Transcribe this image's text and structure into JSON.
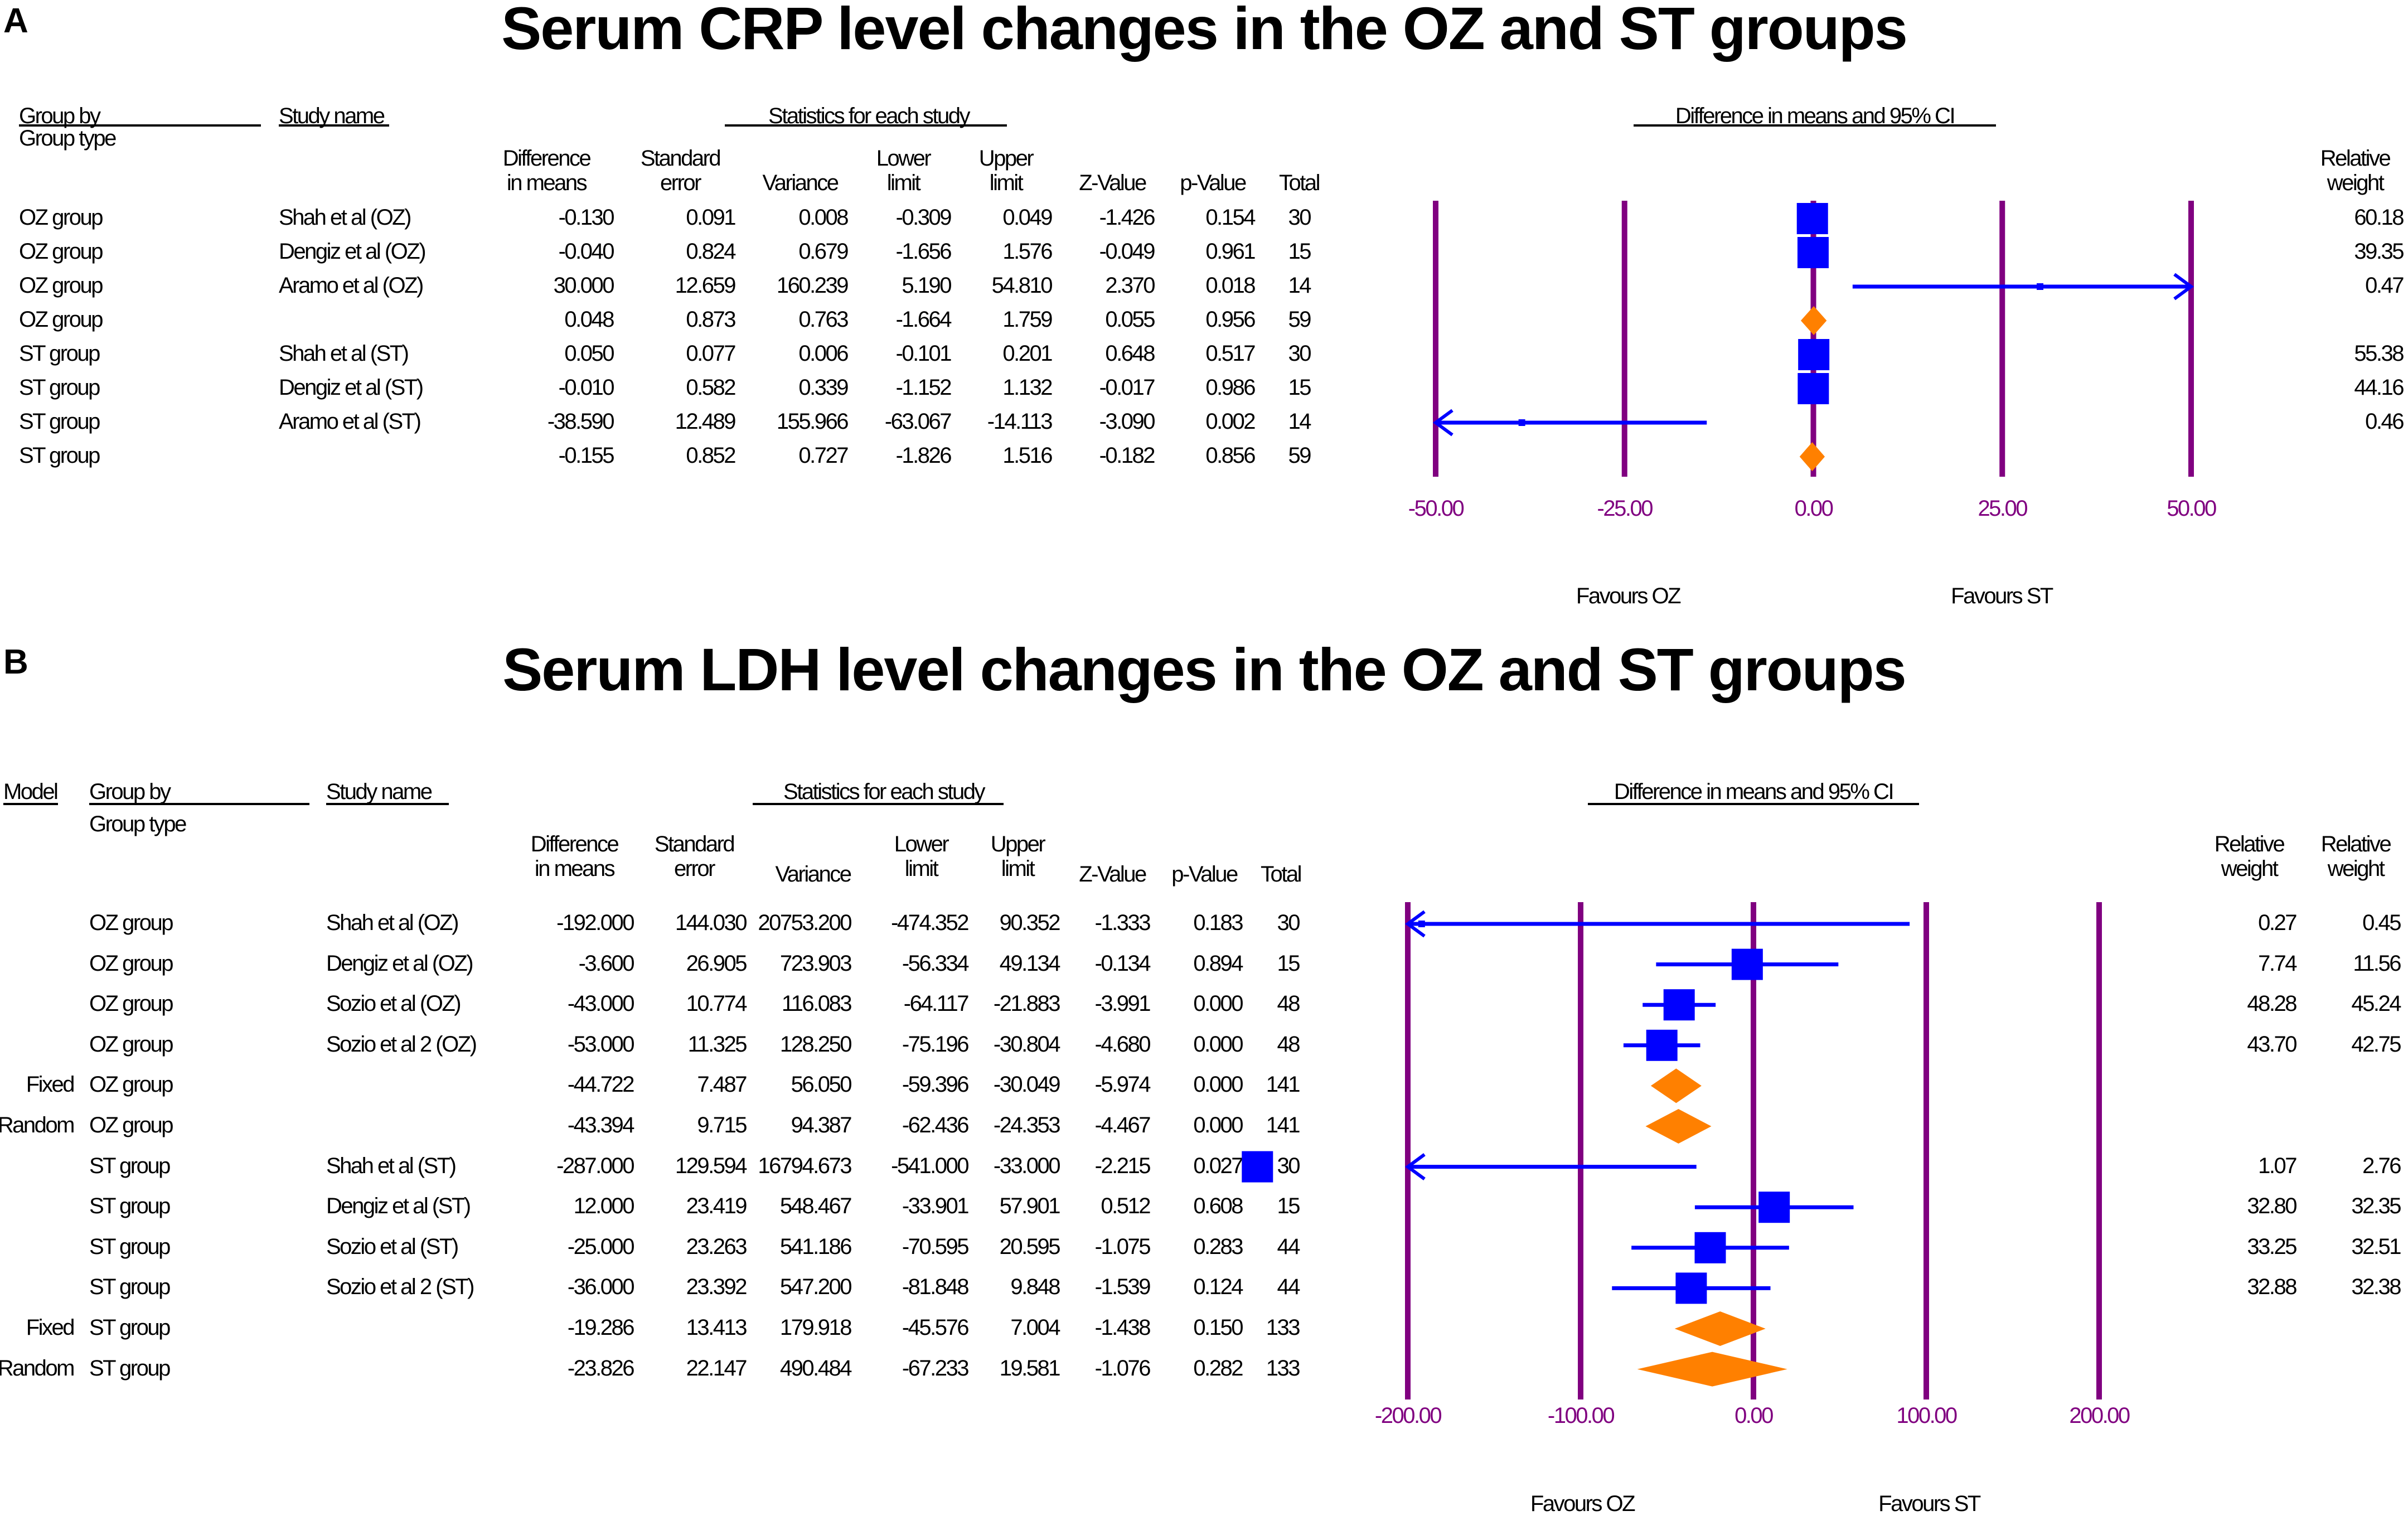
{
  "colors": {
    "grid": "#800080",
    "square": "#0000ff",
    "ci": "#0000ff",
    "diamond": "#ff8000",
    "tick": "#800080"
  },
  "chart_data": [
    {
      "type": "forest",
      "panel": "A",
      "title": "Serum CRP level changes in the OZ and ST groups",
      "headers": {
        "group_by": "Group by",
        "group_type": "Group type",
        "study_name": "Study name",
        "stats_header": "Statistics for each study",
        "ci_header": "Difference in means and 95% CI",
        "diff": [
          "Difference",
          "in means"
        ],
        "se": [
          "Standard",
          "error"
        ],
        "var": "Variance",
        "lower": [
          "Lower",
          "limit"
        ],
        "upper": [
          "Upper",
          "limit"
        ],
        "z": "Z-Value",
        "p": "p-Value",
        "total": "Total",
        "weight": [
          "Relative",
          "weight"
        ]
      },
      "xlim": [
        -50,
        50
      ],
      "ticks": [
        "-50.00",
        "-25.00",
        "0.00",
        "25.00",
        "50.00"
      ],
      "tick_values": [
        -50,
        -25,
        0,
        25,
        50
      ],
      "favours_left": "Favours OZ",
      "favours_right": "Favours ST",
      "rows": [
        {
          "model": "",
          "group": "OZ group",
          "study": "Shah et al (OZ)",
          "diff": "-0.130",
          "se": "0.091",
          "var": "0.008",
          "lower": "-0.309",
          "upper": "0.049",
          "z": "-1.426",
          "p": "0.154",
          "total": "30",
          "weight": "60.18",
          "kind": "study",
          "d": -0.13,
          "lo": -0.309,
          "hi": 0.049
        },
        {
          "model": "",
          "group": "OZ group",
          "study": "Dengiz et al (OZ)",
          "diff": "-0.040",
          "se": "0.824",
          "var": "0.679",
          "lower": "-1.656",
          "upper": "1.576",
          "z": "-0.049",
          "p": "0.961",
          "total": "15",
          "weight": "39.35",
          "kind": "study",
          "d": -0.04,
          "lo": -1.656,
          "hi": 1.576
        },
        {
          "model": "",
          "group": "OZ group",
          "study": "Aramo et al (OZ)",
          "diff": "30.000",
          "se": "12.659",
          "var": "160.239",
          "lower": "5.190",
          "upper": "54.810",
          "z": "2.370",
          "p": "0.018",
          "total": "14",
          "weight": "0.47",
          "kind": "study",
          "d": 30.0,
          "lo": 5.19,
          "hi": 54.81
        },
        {
          "model": "",
          "group": "OZ group",
          "study": "",
          "diff": "0.048",
          "se": "0.873",
          "var": "0.763",
          "lower": "-1.664",
          "upper": "1.759",
          "z": "0.055",
          "p": "0.956",
          "total": "59",
          "weight": "",
          "kind": "summary",
          "d": 0.048,
          "lo": -1.664,
          "hi": 1.759
        },
        {
          "model": "",
          "group": "ST group",
          "study": "Shah et al (ST)",
          "diff": "0.050",
          "se": "0.077",
          "var": "0.006",
          "lower": "-0.101",
          "upper": "0.201",
          "z": "0.648",
          "p": "0.517",
          "total": "30",
          "weight": "55.38",
          "kind": "study",
          "d": 0.05,
          "lo": -0.101,
          "hi": 0.201
        },
        {
          "model": "",
          "group": "ST group",
          "study": "Dengiz et al (ST)",
          "diff": "-0.010",
          "se": "0.582",
          "var": "0.339",
          "lower": "-1.152",
          "upper": "1.132",
          "z": "-0.017",
          "p": "0.986",
          "total": "15",
          "weight": "44.16",
          "kind": "study",
          "d": -0.01,
          "lo": -1.152,
          "hi": 1.132
        },
        {
          "model": "",
          "group": "ST group",
          "study": "Aramo et al (ST)",
          "diff": "-38.590",
          "se": "12.489",
          "var": "155.966",
          "lower": "-63.067",
          "upper": "-14.113",
          "z": "-3.090",
          "p": "0.002",
          "total": "14",
          "weight": "0.46",
          "kind": "study",
          "d": -38.59,
          "lo": -63.067,
          "hi": -14.113
        },
        {
          "model": "",
          "group": "ST group",
          "study": "",
          "diff": "-0.155",
          "se": "0.852",
          "var": "0.727",
          "lower": "-1.826",
          "upper": "1.516",
          "z": "-0.182",
          "p": "0.856",
          "total": "59",
          "weight": "",
          "kind": "summary",
          "d": -0.155,
          "lo": -1.826,
          "hi": 1.516
        }
      ]
    },
    {
      "type": "forest",
      "panel": "B",
      "title": "Serum LDH level changes in the OZ and ST groups",
      "headers": {
        "model": "Model",
        "group_by": "Group by",
        "group_type": "Group type",
        "study_name": "Study name",
        "stats_header": "Statistics for each study",
        "ci_header": "Difference in means and 95% CI",
        "diff": [
          "Difference",
          "in means"
        ],
        "se": [
          "Standard",
          "error"
        ],
        "var": "Variance",
        "lower": [
          "Lower",
          "limit"
        ],
        "upper": [
          "Upper",
          "limit"
        ],
        "z": "Z-Value",
        "p": "p-Value",
        "total": "Total",
        "weight": [
          "Relative",
          "weight"
        ],
        "weight2": [
          "Relative",
          "weight"
        ]
      },
      "xlim": [
        -200,
        200
      ],
      "ticks": [
        "-200.00",
        "-100.00",
        "0.00",
        "100.00",
        "200.00"
      ],
      "tick_values": [
        -200,
        -100,
        0,
        100,
        200
      ],
      "favours_left": "Favours OZ",
      "favours_right": "Favours ST",
      "rows": [
        {
          "model": "",
          "group": "OZ group",
          "study": "Shah et al (OZ)",
          "diff": "-192.000",
          "se": "144.030",
          "var": "20753.200",
          "lower": "-474.352",
          "upper": "90.352",
          "z": "-1.333",
          "p": "0.183",
          "total": "30",
          "weight": "0.27",
          "weight2": "0.45",
          "kind": "study",
          "d": -192.0,
          "lo": -474.352,
          "hi": 90.352
        },
        {
          "model": "",
          "group": "OZ group",
          "study": "Dengiz et al (OZ)",
          "diff": "-3.600",
          "se": "26.905",
          "var": "723.903",
          "lower": "-56.334",
          "upper": "49.134",
          "z": "-0.134",
          "p": "0.894",
          "total": "15",
          "weight": "7.74",
          "weight2": "11.56",
          "kind": "study",
          "d": -3.6,
          "lo": -56.334,
          "hi": 49.134
        },
        {
          "model": "",
          "group": "OZ group",
          "study": "Sozio et al (OZ)",
          "diff": "-43.000",
          "se": "10.774",
          "var": "116.083",
          "lower": "-64.117",
          "upper": "-21.883",
          "z": "-3.991",
          "p": "0.000",
          "total": "48",
          "weight": "48.28",
          "weight2": "45.24",
          "kind": "study",
          "d": -43.0,
          "lo": -64.117,
          "hi": -21.883
        },
        {
          "model": "",
          "group": "OZ group",
          "study": "Sozio et al 2 (OZ)",
          "diff": "-53.000",
          "se": "11.325",
          "var": "128.250",
          "lower": "-75.196",
          "upper": "-30.804",
          "z": "-4.680",
          "p": "0.000",
          "total": "48",
          "weight": "43.70",
          "weight2": "42.75",
          "kind": "study",
          "d": -53.0,
          "lo": -75.196,
          "hi": -30.804
        },
        {
          "model": "Fixed",
          "group": "OZ group",
          "study": "",
          "diff": "-44.722",
          "se": "7.487",
          "var": "56.050",
          "lower": "-59.396",
          "upper": "-30.049",
          "z": "-5.974",
          "p": "0.000",
          "total": "141",
          "weight": "",
          "weight2": "",
          "kind": "summary",
          "d": -44.722,
          "lo": -59.396,
          "hi": -30.049
        },
        {
          "model": "Random",
          "group": "OZ group",
          "study": "",
          "diff": "-43.394",
          "se": "9.715",
          "var": "94.387",
          "lower": "-62.436",
          "upper": "-24.353",
          "z": "-4.467",
          "p": "0.000",
          "total": "141",
          "weight": "",
          "weight2": "",
          "kind": "summary",
          "d": -43.394,
          "lo": -62.436,
          "hi": -24.353
        },
        {
          "model": "",
          "group": "ST group",
          "study": "Shah et al (ST)",
          "diff": "-287.000",
          "se": "129.594",
          "var": "16794.673",
          "lower": "-541.000",
          "upper": "-33.000",
          "z": "-2.215",
          "p": "0.027",
          "total": "30",
          "weight": "1.07",
          "weight2": "2.76",
          "kind": "study",
          "d": -287.0,
          "lo": -541.0,
          "hi": -33.0
        },
        {
          "model": "",
          "group": "ST group",
          "study": "Dengiz et al (ST)",
          "diff": "12.000",
          "se": "23.419",
          "var": "548.467",
          "lower": "-33.901",
          "upper": "57.901",
          "z": "0.512",
          "p": "0.608",
          "total": "15",
          "weight": "32.80",
          "weight2": "32.35",
          "kind": "study",
          "d": 12.0,
          "lo": -33.901,
          "hi": 57.901
        },
        {
          "model": "",
          "group": "ST group",
          "study": "Sozio et al (ST)",
          "diff": "-25.000",
          "se": "23.263",
          "var": "541.186",
          "lower": "-70.595",
          "upper": "20.595",
          "z": "-1.075",
          "p": "0.283",
          "total": "44",
          "weight": "33.25",
          "weight2": "32.51",
          "kind": "study",
          "d": -25.0,
          "lo": -70.595,
          "hi": 20.595
        },
        {
          "model": "",
          "group": "ST group",
          "study": "Sozio et al 2 (ST)",
          "diff": "-36.000",
          "se": "23.392",
          "var": "547.200",
          "lower": "-81.848",
          "upper": "9.848",
          "z": "-1.539",
          "p": "0.124",
          "total": "44",
          "weight": "32.88",
          "weight2": "32.38",
          "kind": "study",
          "d": -36.0,
          "lo": -81.848,
          "hi": 9.848
        },
        {
          "model": "Fixed",
          "group": "ST group",
          "study": "",
          "diff": "-19.286",
          "se": "13.413",
          "var": "179.918",
          "lower": "-45.576",
          "upper": "7.004",
          "z": "-1.438",
          "p": "0.150",
          "total": "133",
          "weight": "",
          "weight2": "",
          "kind": "summary",
          "d": -19.286,
          "lo": -45.576,
          "hi": 7.004
        },
        {
          "model": "Random",
          "group": "ST group",
          "study": "",
          "diff": "-23.826",
          "se": "22.147",
          "var": "490.484",
          "lower": "-67.233",
          "upper": "19.581",
          "z": "-1.076",
          "p": "0.282",
          "total": "133",
          "weight": "",
          "weight2": "",
          "kind": "summary",
          "d": -23.826,
          "lo": -67.233,
          "hi": 19.581
        }
      ]
    }
  ]
}
